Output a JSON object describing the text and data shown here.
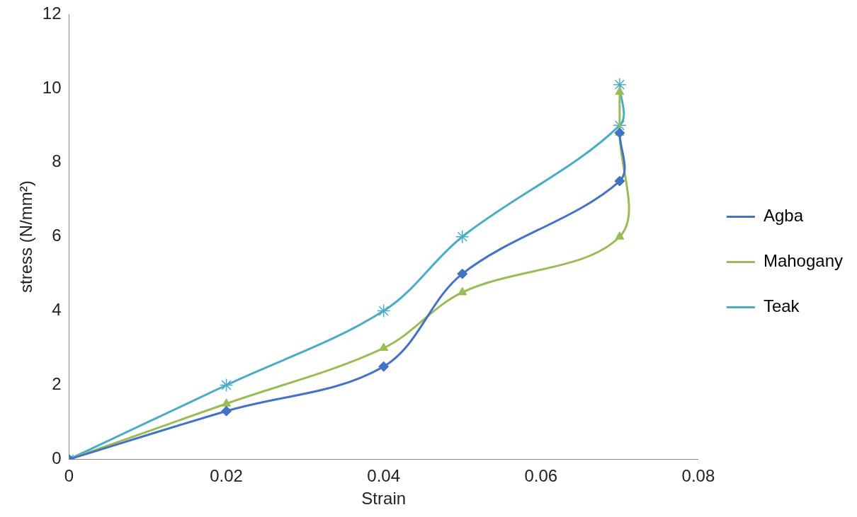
{
  "chart_data": {
    "type": "line",
    "xlabel": "Strain",
    "ylabel": "stress (N/mm²)",
    "xlim": [
      0,
      0.08
    ],
    "xticks": [
      0,
      0.02,
      0.04,
      0.06,
      0.08
    ],
    "ylim": [
      0,
      12
    ],
    "yticks": [
      0,
      2,
      4,
      6,
      8,
      10,
      12
    ],
    "grid": false,
    "legend": "right",
    "series": [
      {
        "name": "Agba",
        "color": "#4472c4",
        "marker": "diamond",
        "x": [
          0,
          0.02,
          0.04,
          0.05,
          0.07,
          0.07
        ],
        "values": [
          0,
          1.3,
          2.5,
          5,
          7.5,
          8.8
        ]
      },
      {
        "name": "Mahogany",
        "color": "#9bbb59",
        "marker": "triangle",
        "x": [
          0,
          0.02,
          0.04,
          0.05,
          0.07,
          0.07,
          0.07
        ],
        "values": [
          0,
          1.5,
          3,
          4.5,
          6,
          8.8,
          9.9
        ]
      },
      {
        "name": "Teak",
        "color": "#4bacc6",
        "marker": "cross",
        "x": [
          0,
          0.02,
          0.04,
          0.05,
          0.07,
          0.07
        ],
        "values": [
          0,
          2,
          4,
          6,
          9,
          10.1
        ]
      }
    ]
  }
}
